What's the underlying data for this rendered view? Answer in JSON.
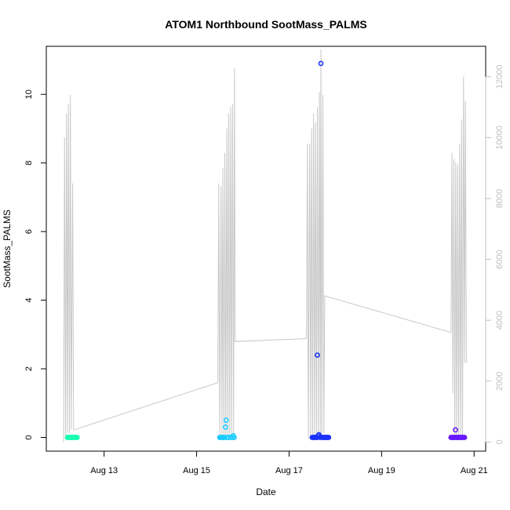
{
  "chart_data": {
    "type": "scatter",
    "title": "ATOM1 Northbound SootMass_PALMS",
    "xlabel": "Date",
    "ylabel": "SootMass_PALMS",
    "x_range": [
      "2016-08-11 18:00",
      "2016-08-21 06:00"
    ],
    "x_ticks": [
      {
        "label": "Aug 13",
        "date": "2016-08-13"
      },
      {
        "label": "Aug 15",
        "date": "2016-08-15"
      },
      {
        "label": "Aug 17",
        "date": "2016-08-17"
      },
      {
        "label": "Aug 19",
        "date": "2016-08-19"
      },
      {
        "label": "Aug 21",
        "date": "2016-08-21"
      }
    ],
    "ylim": [
      -0.4,
      11.4
    ],
    "y_ticks": [
      0,
      2,
      4,
      6,
      8,
      10
    ],
    "y2lim": [
      -300,
      13000
    ],
    "y2_ticks": [
      0,
      2000,
      4000,
      6000,
      8000,
      10000,
      12000
    ],
    "grid": false,
    "legend": "none",
    "colors": {
      "axis": "#000000",
      "secondary_line": "#c8c8c8",
      "secondary_axis": "#c0c0c0"
    },
    "series": [
      {
        "color": "#19ffb3",
        "points": [
          {
            "x": "2016-08-12 05:00",
            "y": 0.0
          },
          {
            "x": "2016-08-12 05:30",
            "y": 0.0
          },
          {
            "x": "2016-08-12 06:00",
            "y": 0.0
          },
          {
            "x": "2016-08-12 06:30",
            "y": 0.0
          },
          {
            "x": "2016-08-12 07:00",
            "y": 0.0
          },
          {
            "x": "2016-08-12 07:30",
            "y": 0.0
          },
          {
            "x": "2016-08-12 08:00",
            "y": 0.0
          },
          {
            "x": "2016-08-12 08:30",
            "y": 0.0
          },
          {
            "x": "2016-08-12 09:00",
            "y": 0.0
          },
          {
            "x": "2016-08-12 09:30",
            "y": 0.0
          },
          {
            "x": "2016-08-12 10:00",
            "y": 0.0
          }
        ]
      },
      {
        "color": "#19ccff",
        "points": [
          {
            "x": "2016-08-15 12:00",
            "y": 0.0
          },
          {
            "x": "2016-08-15 12:30",
            "y": 0.0
          },
          {
            "x": "2016-08-15 13:00",
            "y": 0.0
          },
          {
            "x": "2016-08-15 13:30",
            "y": 0.0
          },
          {
            "x": "2016-08-15 14:00",
            "y": 0.0
          },
          {
            "x": "2016-08-15 14:30",
            "y": 0.0
          },
          {
            "x": "2016-08-15 15:00",
            "y": 0.3
          },
          {
            "x": "2016-08-15 15:20",
            "y": 0.5
          },
          {
            "x": "2016-08-15 15:40",
            "y": 0.0
          },
          {
            "x": "2016-08-15 16:30",
            "y": 0.0
          },
          {
            "x": "2016-08-15 17:30",
            "y": 0.0
          },
          {
            "x": "2016-08-15 18:30",
            "y": 0.0
          },
          {
            "x": "2016-08-15 19:00",
            "y": 0.05
          },
          {
            "x": "2016-08-15 19:30",
            "y": 0.0
          }
        ]
      },
      {
        "color": "#1a33ff",
        "points": [
          {
            "x": "2016-08-17 12:00",
            "y": 0.0
          },
          {
            "x": "2016-08-17 12:30",
            "y": 0.0
          },
          {
            "x": "2016-08-17 13:00",
            "y": 0.0
          },
          {
            "x": "2016-08-17 13:30",
            "y": 0.0
          },
          {
            "x": "2016-08-17 14:00",
            "y": 0.0
          },
          {
            "x": "2016-08-17 14:30",
            "y": 0.0
          },
          {
            "x": "2016-08-17 14:40",
            "y": 2.4
          },
          {
            "x": "2016-08-17 15:00",
            "y": 0.05
          },
          {
            "x": "2016-08-17 15:30",
            "y": 0.08
          },
          {
            "x": "2016-08-17 16:00",
            "y": 0.0
          },
          {
            "x": "2016-08-17 16:30",
            "y": 10.9
          },
          {
            "x": "2016-08-17 17:00",
            "y": 0.0
          },
          {
            "x": "2016-08-17 17:30",
            "y": 0.0
          },
          {
            "x": "2016-08-17 18:00",
            "y": 0.0
          },
          {
            "x": "2016-08-17 18:30",
            "y": 0.0
          },
          {
            "x": "2016-08-17 19:00",
            "y": 0.0
          },
          {
            "x": "2016-08-17 19:30",
            "y": 0.0
          },
          {
            "x": "2016-08-17 20:00",
            "y": 0.0
          },
          {
            "x": "2016-08-17 20:30",
            "y": 0.0
          }
        ]
      },
      {
        "color": "#6619ff",
        "points": [
          {
            "x": "2016-08-20 12:00",
            "y": 0.0
          },
          {
            "x": "2016-08-20 12:30",
            "y": 0.0
          },
          {
            "x": "2016-08-20 13:00",
            "y": 0.0
          },
          {
            "x": "2016-08-20 13:30",
            "y": 0.0
          },
          {
            "x": "2016-08-20 14:00",
            "y": 0.0
          },
          {
            "x": "2016-08-20 14:20",
            "y": 0.22
          },
          {
            "x": "2016-08-20 14:40",
            "y": 0.0
          },
          {
            "x": "2016-08-20 15:00",
            "y": 0.0
          },
          {
            "x": "2016-08-20 15:30",
            "y": 0.0
          },
          {
            "x": "2016-08-20 16:00",
            "y": 0.0
          },
          {
            "x": "2016-08-20 16:30",
            "y": 0.0
          },
          {
            "x": "2016-08-20 17:00",
            "y": 0.0
          },
          {
            "x": "2016-08-20 17:30",
            "y": 0.0
          },
          {
            "x": "2016-08-20 18:00",
            "y": 0.0
          },
          {
            "x": "2016-08-20 18:30",
            "y": 0.0
          },
          {
            "x": "2016-08-20 19:00",
            "y": 0.0
          }
        ]
      }
    ],
    "secondary_series": {
      "type": "line",
      "axis": "right",
      "color": "#c8c8c8",
      "points": [
        {
          "x": "2016-08-12 03:00",
          "y": 0
        },
        {
          "x": "2016-08-12 03:30",
          "y": 10000
        },
        {
          "x": "2016-08-12 04:00",
          "y": 200
        },
        {
          "x": "2016-08-12 04:30",
          "y": 10800
        },
        {
          "x": "2016-08-12 05:00",
          "y": 300
        },
        {
          "x": "2016-08-12 05:30",
          "y": 11100
        },
        {
          "x": "2016-08-12 06:00",
          "y": 300
        },
        {
          "x": "2016-08-12 06:30",
          "y": 11400
        },
        {
          "x": "2016-08-12 07:00",
          "y": 400
        },
        {
          "x": "2016-08-12 07:40",
          "y": 8500
        },
        {
          "x": "2016-08-12 08:10",
          "y": 400
        },
        {
          "x": "2016-08-12 08:30",
          "y": 400
        },
        {
          "x": "2016-08-15 11:00",
          "y": 1950
        },
        {
          "x": "2016-08-15 11:30",
          "y": 8500
        },
        {
          "x": "2016-08-15 12:00",
          "y": 100
        },
        {
          "x": "2016-08-15 12:40",
          "y": 8400
        },
        {
          "x": "2016-08-15 13:10",
          "y": 100
        },
        {
          "x": "2016-08-15 13:40",
          "y": 9000
        },
        {
          "x": "2016-08-15 14:10",
          "y": 200
        },
        {
          "x": "2016-08-15 14:40",
          "y": 9500
        },
        {
          "x": "2016-08-15 15:10",
          "y": 100
        },
        {
          "x": "2016-08-15 15:40",
          "y": 10300
        },
        {
          "x": "2016-08-15 16:10",
          "y": 200
        },
        {
          "x": "2016-08-15 16:40",
          "y": 10800
        },
        {
          "x": "2016-08-15 17:10",
          "y": 100
        },
        {
          "x": "2016-08-15 17:40",
          "y": 11000
        },
        {
          "x": "2016-08-15 18:10",
          "y": 200
        },
        {
          "x": "2016-08-15 18:40",
          "y": 11100
        },
        {
          "x": "2016-08-15 19:10",
          "y": 300
        },
        {
          "x": "2016-08-15 19:40",
          "y": 12300
        },
        {
          "x": "2016-08-15 20:00",
          "y": 3300
        },
        {
          "x": "2016-08-17 09:00",
          "y": 3400
        },
        {
          "x": "2016-08-17 09:30",
          "y": 9800
        },
        {
          "x": "2016-08-17 10:00",
          "y": 100
        },
        {
          "x": "2016-08-17 10:40",
          "y": 9800
        },
        {
          "x": "2016-08-17 11:10",
          "y": 100
        },
        {
          "x": "2016-08-17 11:40",
          "y": 10300
        },
        {
          "x": "2016-08-17 12:10",
          "y": 100
        },
        {
          "x": "2016-08-17 12:40",
          "y": 10800
        },
        {
          "x": "2016-08-17 13:10",
          "y": 100
        },
        {
          "x": "2016-08-17 13:40",
          "y": 10500
        },
        {
          "x": "2016-08-17 14:10",
          "y": 100
        },
        {
          "x": "2016-08-17 14:40",
          "y": 11000
        },
        {
          "x": "2016-08-17 15:10",
          "y": 100
        },
        {
          "x": "2016-08-17 15:40",
          "y": 11500
        },
        {
          "x": "2016-08-17 16:10",
          "y": 200
        },
        {
          "x": "2016-08-17 16:30",
          "y": 12900
        },
        {
          "x": "2016-08-17 17:00",
          "y": 200
        },
        {
          "x": "2016-08-17 17:30",
          "y": 11400
        },
        {
          "x": "2016-08-17 18:00",
          "y": 300
        },
        {
          "x": "2016-08-17 18:30",
          "y": 4800
        },
        {
          "x": "2016-08-20 12:00",
          "y": 3600
        },
        {
          "x": "2016-08-20 12:30",
          "y": 9500
        },
        {
          "x": "2016-08-20 13:00",
          "y": 1600
        },
        {
          "x": "2016-08-20 13:30",
          "y": 9300
        },
        {
          "x": "2016-08-20 14:00",
          "y": 100
        },
        {
          "x": "2016-08-20 14:30",
          "y": 9200
        },
        {
          "x": "2016-08-20 15:00",
          "y": 100
        },
        {
          "x": "2016-08-20 15:30",
          "y": 9100
        },
        {
          "x": "2016-08-20 16:00",
          "y": 100
        },
        {
          "x": "2016-08-20 16:30",
          "y": 9800
        },
        {
          "x": "2016-08-20 17:00",
          "y": 100
        },
        {
          "x": "2016-08-20 17:30",
          "y": 10600
        },
        {
          "x": "2016-08-20 18:00",
          "y": 100
        },
        {
          "x": "2016-08-20 18:30",
          "y": 12000
        },
        {
          "x": "2016-08-20 19:00",
          "y": 2600
        },
        {
          "x": "2016-08-20 19:30",
          "y": 11200
        },
        {
          "x": "2016-08-20 20:00",
          "y": 2600
        }
      ]
    }
  }
}
